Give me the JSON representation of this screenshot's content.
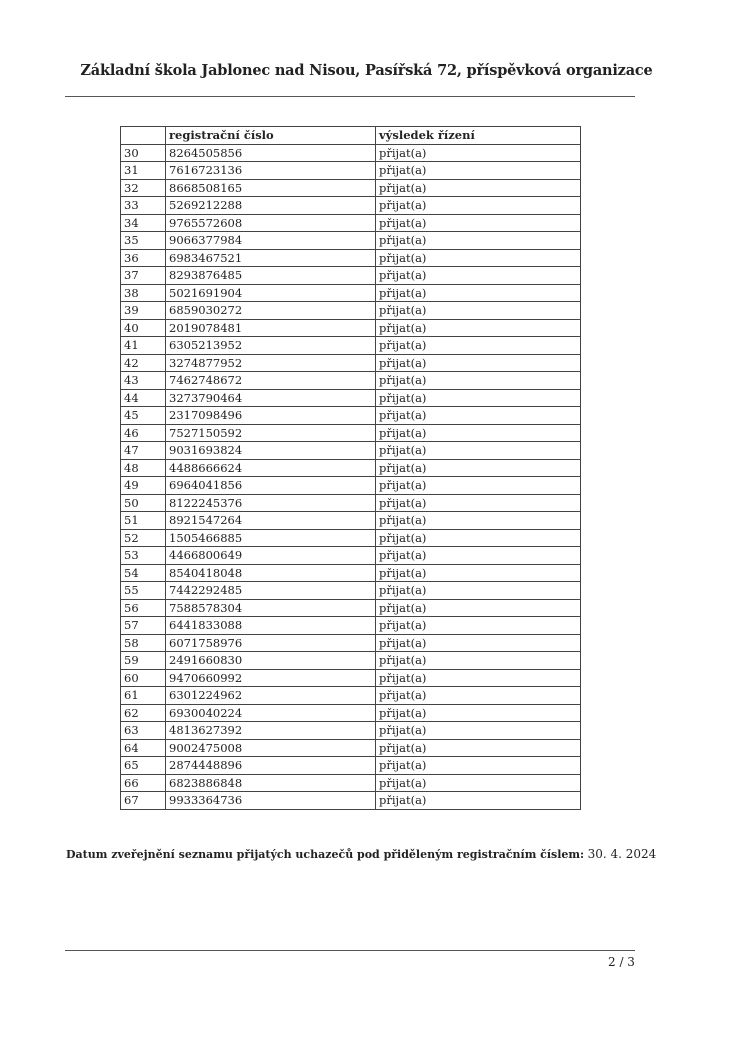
{
  "header": {
    "title": "Základní škola Jablonec nad Nisou, Pasířská 72, příspěvková organizace"
  },
  "table": {
    "columns": [
      "",
      "registrační číslo",
      "výsledek řízení"
    ],
    "rows": [
      [
        "30",
        "8264505856",
        "přijat(a)"
      ],
      [
        "31",
        "7616723136",
        "přijat(a)"
      ],
      [
        "32",
        "8668508165",
        "přijat(a)"
      ],
      [
        "33",
        "5269212288",
        "přijat(a)"
      ],
      [
        "34",
        "9765572608",
        "přijat(a)"
      ],
      [
        "35",
        "9066377984",
        "přijat(a)"
      ],
      [
        "36",
        "6983467521",
        "přijat(a)"
      ],
      [
        "37",
        "8293876485",
        "přijat(a)"
      ],
      [
        "38",
        "5021691904",
        "přijat(a)"
      ],
      [
        "39",
        "6859030272",
        "přijat(a)"
      ],
      [
        "40",
        "2019078481",
        "přijat(a)"
      ],
      [
        "41",
        "6305213952",
        "přijat(a)"
      ],
      [
        "42",
        "3274877952",
        "přijat(a)"
      ],
      [
        "43",
        "7462748672",
        "přijat(a)"
      ],
      [
        "44",
        "3273790464",
        "přijat(a)"
      ],
      [
        "45",
        "2317098496",
        "přijat(a)"
      ],
      [
        "46",
        "7527150592",
        "přijat(a)"
      ],
      [
        "47",
        "9031693824",
        "přijat(a)"
      ],
      [
        "48",
        "4488666624",
        "přijat(a)"
      ],
      [
        "49",
        "6964041856",
        "přijat(a)"
      ],
      [
        "50",
        "8122245376",
        "přijat(a)"
      ],
      [
        "51",
        "8921547264",
        "přijat(a)"
      ],
      [
        "52",
        "1505466885",
        "přijat(a)"
      ],
      [
        "53",
        "4466800649",
        "přijat(a)"
      ],
      [
        "54",
        "8540418048",
        "přijat(a)"
      ],
      [
        "55",
        "7442292485",
        "přijat(a)"
      ],
      [
        "56",
        "7588578304",
        "přijat(a)"
      ],
      [
        "57",
        "6441833088",
        "přijat(a)"
      ],
      [
        "58",
        "6071758976",
        "přijat(a)"
      ],
      [
        "59",
        "2491660830",
        "přijat(a)"
      ],
      [
        "60",
        "9470660992",
        "přijat(a)"
      ],
      [
        "61",
        "6301224962",
        "přijat(a)"
      ],
      [
        "62",
        "6930040224",
        "přijat(a)"
      ],
      [
        "63",
        "4813627392",
        "přijat(a)"
      ],
      [
        "64",
        "9002475008",
        "přijat(a)"
      ],
      [
        "65",
        "2874448896",
        "přijat(a)"
      ],
      [
        "66",
        "6823886848",
        "přijat(a)"
      ],
      [
        "67",
        "9933364736",
        "přijat(a)"
      ]
    ]
  },
  "footer": {
    "label": "Datum zveřejnění seznamu přijatých uchazečů pod přiděleným registračním číslem:",
    "date": "30. 4. 2024",
    "page": "2 / 3"
  }
}
